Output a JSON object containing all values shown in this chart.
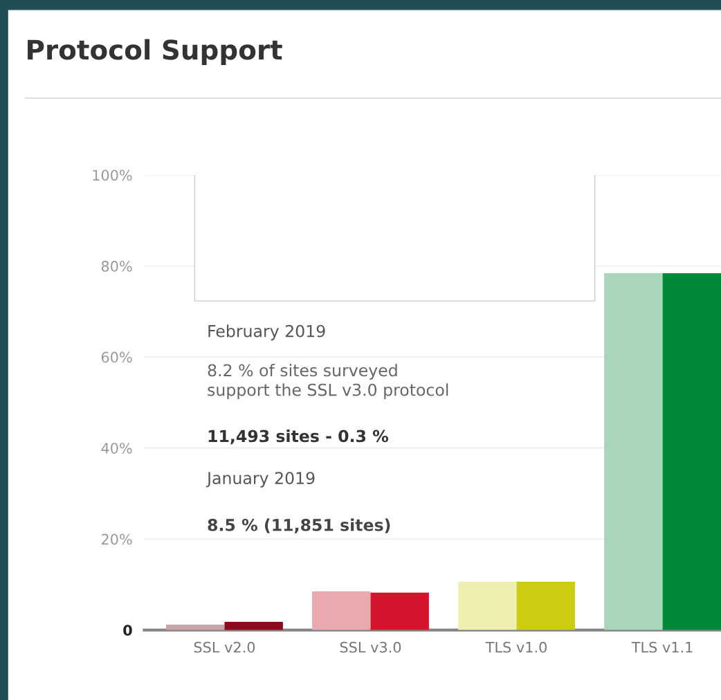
{
  "chart_data": {
    "type": "bar",
    "title": "Protocol Support",
    "categories": [
      "SSL v2.0",
      "SSL v3.0",
      "TLS v1.0",
      "TLS v1.1"
    ],
    "series": [
      {
        "colors": [
          "#c9a3a6",
          "#eaa9ae",
          "#efefb0",
          "#a9d5bb"
        ],
        "values": [
          1.2,
          8.5,
          10.6,
          78.4
        ]
      },
      {
        "colors": [
          "#8c0a1c",
          "#d3142c",
          "#cccc10",
          "#00893a"
        ],
        "values": [
          1.8,
          8.2,
          10.6,
          78.4
        ]
      }
    ],
    "ylim": [
      0,
      100
    ],
    "yticks": [
      0,
      {
        "value": 20,
        "label": "20%"
      },
      {
        "value": 40,
        "label": "40%"
      },
      {
        "value": 60,
        "label": "60%"
      },
      {
        "value": 80,
        "label": "80%"
      },
      {
        "value": 100,
        "label": "100%"
      }
    ],
    "grid": "y",
    "annotations": [
      "February 2019",
      "8.2 % of sites surveyed\nsupport the SSL v3.0 protocol",
      "11,493 sites - 0.3 %",
      "January 2019",
      "8.5 % (11,851 sites)"
    ]
  }
}
